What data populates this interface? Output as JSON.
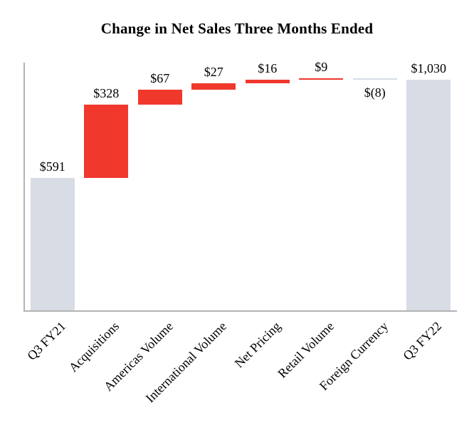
{
  "title": "Change in Net Sales Three Months Ended",
  "chart_data": {
    "type": "bar",
    "subtype": "waterfall",
    "title": "Change in Net Sales Three Months Ended",
    "categories": [
      "Q3 FY21",
      "Acquisitions",
      "Americas Volume",
      "International Volume",
      "Net Pricing",
      "Retail Volume",
      "Foreign Currency",
      "Q3 FY22"
    ],
    "values": [
      591,
      328,
      67,
      27,
      16,
      9,
      -8,
      1030
    ],
    "roles": [
      "total",
      "increase",
      "increase",
      "increase",
      "increase",
      "increase",
      "decrease",
      "total"
    ],
    "value_labels": [
      "$591",
      "$328",
      "$67",
      "$27",
      "$16",
      "$9",
      "$(8)",
      "$1,030"
    ],
    "cumulative": [
      591,
      919,
      986,
      1013,
      1029,
      1038,
      1030,
      1030
    ],
    "xlabel": "",
    "ylabel": "",
    "ylim": [
      0,
      1100
    ],
    "grid": false,
    "legend": false,
    "colors": {
      "total_bar": "#d7dce5",
      "increase_bar": "#f0382c",
      "decrease_bar": "#d7dce5",
      "axis_line": "#b3b3b3",
      "text": "#000000"
    }
  }
}
